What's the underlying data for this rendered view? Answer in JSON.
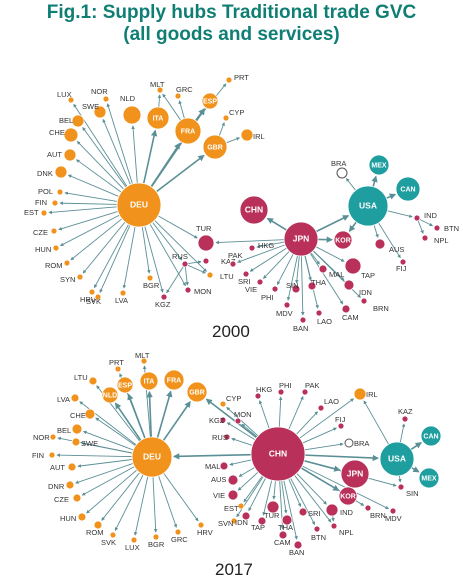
{
  "title": {
    "line1": "Fig.1: Supply hubs Traditional trade GVC",
    "line2": "(all goods and services)"
  },
  "colors": {
    "europe": "#f0921b",
    "asia": "#b9315b",
    "america": "#1f9ea0",
    "edge": "#5b8f96"
  },
  "networks": [
    {
      "year": "2000",
      "nodes": [
        {
          "id": "DEU",
          "group": "europe",
          "hub": true
        },
        {
          "id": "FRA",
          "group": "europe",
          "hub": true
        },
        {
          "id": "GBR",
          "group": "europe",
          "hub": true
        },
        {
          "id": "ITA",
          "group": "europe",
          "hub": true
        },
        {
          "id": "ESP",
          "group": "europe",
          "hub": true
        },
        {
          "id": "NLD",
          "group": "europe"
        },
        {
          "id": "CHE",
          "group": "europe"
        },
        {
          "id": "BEL",
          "group": "europe"
        },
        {
          "id": "SWE",
          "group": "europe"
        },
        {
          "id": "AUT",
          "group": "europe"
        },
        {
          "id": "DNK",
          "group": "europe"
        },
        {
          "id": "NOR",
          "group": "europe"
        },
        {
          "id": "LUX",
          "group": "europe"
        },
        {
          "id": "GRC",
          "group": "europe"
        },
        {
          "id": "MLT",
          "group": "europe"
        },
        {
          "id": "PRT",
          "group": "europe"
        },
        {
          "id": "CYP",
          "group": "europe"
        },
        {
          "id": "IRL",
          "group": "europe"
        },
        {
          "id": "POL",
          "group": "europe"
        },
        {
          "id": "FIN",
          "group": "europe"
        },
        {
          "id": "EST",
          "group": "europe"
        },
        {
          "id": "CZE",
          "group": "europe"
        },
        {
          "id": "HUN",
          "group": "europe"
        },
        {
          "id": "ROM",
          "group": "europe"
        },
        {
          "id": "SYN",
          "group": "europe"
        },
        {
          "id": "HRV",
          "group": "europe"
        },
        {
          "id": "SVK",
          "group": "europe"
        },
        {
          "id": "LVA",
          "group": "europe"
        },
        {
          "id": "BGR",
          "group": "europe"
        },
        {
          "id": "KGZ",
          "group": "asia"
        },
        {
          "id": "MON",
          "group": "asia"
        },
        {
          "id": "LTU",
          "group": "europe"
        },
        {
          "id": "RUS",
          "group": "asia"
        },
        {
          "id": "KAZ",
          "group": "asia"
        },
        {
          "id": "TUR",
          "group": "asia"
        },
        {
          "id": "CHN",
          "group": "asia",
          "hub": true
        },
        {
          "id": "PAK",
          "group": "asia"
        },
        {
          "id": "HKG",
          "group": "asia"
        },
        {
          "id": "JPN",
          "group": "asia",
          "hub": true
        },
        {
          "id": "SRI",
          "group": "asia"
        },
        {
          "id": "VIE",
          "group": "asia"
        },
        {
          "id": "PHI",
          "group": "asia"
        },
        {
          "id": "MDV",
          "group": "asia"
        },
        {
          "id": "SIN",
          "group": "asia"
        },
        {
          "id": "THA",
          "group": "asia"
        },
        {
          "id": "BAN",
          "group": "asia"
        },
        {
          "id": "MAL",
          "group": "asia"
        },
        {
          "id": "LAO",
          "group": "asia"
        },
        {
          "id": "CAM",
          "group": "asia"
        },
        {
          "id": "IDN",
          "group": "asia"
        },
        {
          "id": "BRN",
          "group": "asia"
        },
        {
          "id": "TAP",
          "group": "asia"
        },
        {
          "id": "KOR",
          "group": "asia",
          "hub": true
        },
        {
          "id": "BRA",
          "group": "america"
        },
        {
          "id": "MEX",
          "group": "america",
          "hub": true
        },
        {
          "id": "USA",
          "group": "america",
          "hub": true
        },
        {
          "id": "CAN",
          "group": "america",
          "hub": true
        },
        {
          "id": "IND",
          "group": "asia"
        },
        {
          "id": "AUS",
          "group": "asia"
        },
        {
          "id": "BTN",
          "group": "asia"
        },
        {
          "id": "NPL",
          "group": "asia"
        },
        {
          "id": "FIJ",
          "group": "asia"
        }
      ]
    },
    {
      "year": "2017",
      "nodes": [
        {
          "id": "PRT",
          "group": "europe"
        },
        {
          "id": "MLT",
          "group": "europe"
        },
        {
          "id": "ESP",
          "group": "europe",
          "hub": true
        },
        {
          "id": "ITA",
          "group": "europe",
          "hub": true
        },
        {
          "id": "FRA",
          "group": "europe",
          "hub": true
        },
        {
          "id": "GBR",
          "group": "europe",
          "hub": true
        },
        {
          "id": "LTU",
          "group": "europe"
        },
        {
          "id": "NLD",
          "group": "europe",
          "hub": true
        },
        {
          "id": "LVA",
          "group": "europe"
        },
        {
          "id": "CHE",
          "group": "europe"
        },
        {
          "id": "BEL",
          "group": "europe"
        },
        {
          "id": "NOR",
          "group": "europe"
        },
        {
          "id": "SWE",
          "group": "europe"
        },
        {
          "id": "FIN",
          "group": "europe"
        },
        {
          "id": "AUT",
          "group": "europe"
        },
        {
          "id": "DNR",
          "group": "europe"
        },
        {
          "id": "CZE",
          "group": "europe"
        },
        {
          "id": "HUN",
          "group": "europe"
        },
        {
          "id": "ROM",
          "group": "europe"
        },
        {
          "id": "SVK",
          "group": "europe"
        },
        {
          "id": "LUX",
          "group": "europe"
        },
        {
          "id": "BGR",
          "group": "europe"
        },
        {
          "id": "GRC",
          "group": "europe"
        },
        {
          "id": "HRV",
          "group": "europe"
        },
        {
          "id": "DEU",
          "group": "europe",
          "hub": true
        },
        {
          "id": "CYP",
          "group": "europe"
        },
        {
          "id": "KGZ",
          "group": "asia"
        },
        {
          "id": "RUS",
          "group": "asia"
        },
        {
          "id": "MON",
          "group": "asia"
        },
        {
          "id": "HKG",
          "group": "asia"
        },
        {
          "id": "PHI",
          "group": "asia"
        },
        {
          "id": "PAK",
          "group": "asia"
        },
        {
          "id": "LAO",
          "group": "asia"
        },
        {
          "id": "FIJ",
          "group": "asia"
        },
        {
          "id": "IRL",
          "group": "europe"
        },
        {
          "id": "KAZ",
          "group": "asia"
        },
        {
          "id": "BRA",
          "group": "america"
        },
        {
          "id": "CAN",
          "group": "america",
          "hub": true
        },
        {
          "id": "USA",
          "group": "america",
          "hub": true
        },
        {
          "id": "MEX",
          "group": "america",
          "hub": true
        },
        {
          "id": "CHN",
          "group": "asia",
          "hub": true
        },
        {
          "id": "JPN",
          "group": "asia",
          "hub": true
        },
        {
          "id": "KOR",
          "group": "asia",
          "hub": true
        },
        {
          "id": "SIN",
          "group": "asia"
        },
        {
          "id": "MDV",
          "group": "asia"
        },
        {
          "id": "BRN",
          "group": "asia"
        },
        {
          "id": "MAL",
          "group": "asia"
        },
        {
          "id": "AUS",
          "group": "asia"
        },
        {
          "id": "VIE",
          "group": "asia"
        },
        {
          "id": "EST",
          "group": "europe"
        },
        {
          "id": "SVN",
          "group": "europe"
        },
        {
          "id": "IDN",
          "group": "asia"
        },
        {
          "id": "TAP",
          "group": "asia"
        },
        {
          "id": "TUR",
          "group": "asia"
        },
        {
          "id": "THA",
          "group": "asia"
        },
        {
          "id": "CAM",
          "group": "asia"
        },
        {
          "id": "BAN",
          "group": "asia"
        },
        {
          "id": "SRI",
          "group": "asia"
        },
        {
          "id": "BTN",
          "group": "asia"
        },
        {
          "id": "IND",
          "group": "asia"
        },
        {
          "id": "NPL",
          "group": "asia"
        }
      ]
    }
  ]
}
